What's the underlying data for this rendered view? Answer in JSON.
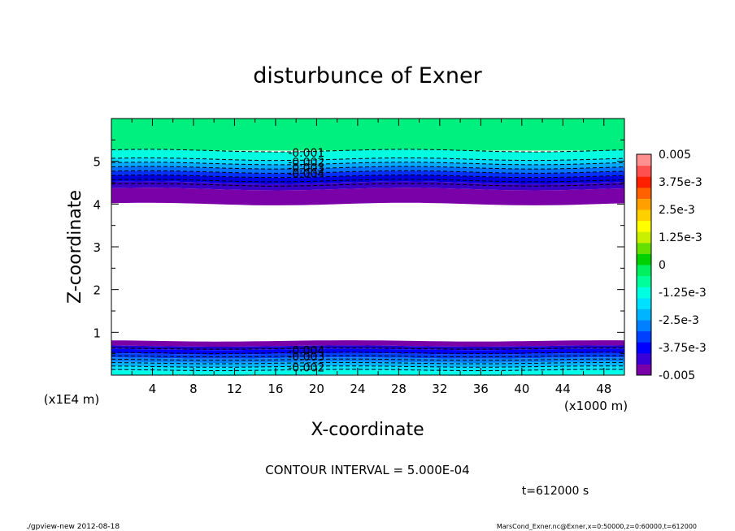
{
  "chart_data": {
    "type": "contour",
    "title": "disturbunce of Exner",
    "xlabel": "X-coordinate",
    "ylabel": "Z-coordinate",
    "x_unit_label": "(x1000 m)",
    "y_unit_label": "(x1E4 m)",
    "xlim": [
      0,
      50
    ],
    "ylim": [
      0,
      6
    ],
    "x_ticks": [
      "4",
      "8",
      "12",
      "16",
      "20",
      "24",
      "28",
      "32",
      "36",
      "40",
      "44",
      "48"
    ],
    "y_ticks": [
      "1",
      "2",
      "3",
      "4",
      "5"
    ],
    "contour_interval_text": "CONTOUR INTERVAL = 5.000E-04",
    "time_text": "t=612000 s",
    "footer_left": "./gpview-new   2012-08-18",
    "footer_right": "MarsCond_Exner.nc@Exner,x=0:50000,z=0:60000,t=612000",
    "contour_labels_upper": [
      "-0.001",
      "-0.002",
      "-0.003",
      "-0.004"
    ],
    "contour_labels_lower": [
      "-0.004",
      "-0.003",
      "-0.002"
    ],
    "colorbar": {
      "labels": [
        "0.005",
        "3.75e-3",
        "2.5e-3",
        "1.25e-3",
        "0",
        "-1.25e-3",
        "-2.5e-3",
        "-3.75e-3",
        "-0.005"
      ],
      "levels": [
        -0.005,
        0.005
      ],
      "colors": [
        "#7a00a8",
        "#3a00d8",
        "#0000ff",
        "#0040ff",
        "#0080ff",
        "#00b4ff",
        "#00e0ff",
        "#00ffe0",
        "#00ff9a",
        "#00f060",
        "#00d000",
        "#66e000",
        "#c8f000",
        "#ffff00",
        "#ffd000",
        "#ffa000",
        "#ff6000",
        "#ff2000",
        "#ff5050",
        "#ff9090"
      ]
    },
    "bands": {
      "upper": {
        "z_top": 6.0,
        "z_zero_level": 5.25,
        "z_bottom": 4.0
      },
      "lower": {
        "z_top": 0.8,
        "z_bottom": 0.0
      }
    }
  }
}
